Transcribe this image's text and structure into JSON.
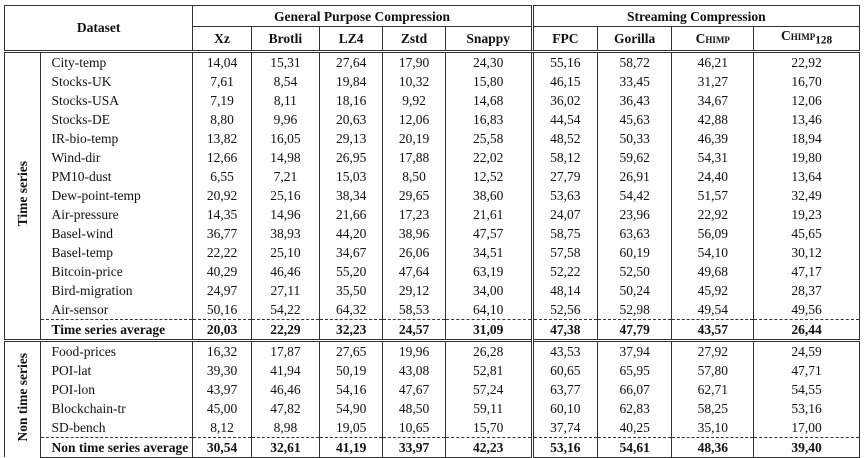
{
  "table": {
    "header": {
      "dataset": "Dataset",
      "groups": [
        "General Purpose Compression",
        "Streaming Compression"
      ],
      "columns": [
        "Xz",
        "Brotli",
        "LZ4",
        "Zstd",
        "Snappy",
        "FPC",
        "Gorilla",
        "Chimp",
        {
          "text": "Chimp",
          "subscript": "128"
        }
      ]
    },
    "sections": [
      {
        "label": "Time series",
        "rows": [
          [
            "City-temp",
            "14,04",
            "15,31",
            "27,64",
            "17,90",
            "24,30",
            "55,16",
            "58,72",
            "46,21",
            "22,92"
          ],
          [
            "Stocks-UK",
            "7,61",
            "8,54",
            "19,84",
            "10,32",
            "15,80",
            "46,15",
            "33,45",
            "31,27",
            "16,70"
          ],
          [
            "Stocks-USA",
            "7,19",
            "8,11",
            "18,16",
            "9,92",
            "14,68",
            "36,02",
            "36,43",
            "34,67",
            "12,06"
          ],
          [
            "Stocks-DE",
            "8,80",
            "9,96",
            "20,63",
            "12,06",
            "16,83",
            "44,54",
            "45,63",
            "42,88",
            "13,46"
          ],
          [
            "IR-bio-temp",
            "13,82",
            "16,05",
            "29,13",
            "20,19",
            "25,58",
            "48,52",
            "50,33",
            "46,39",
            "18,94"
          ],
          [
            "Wind-dir",
            "12,66",
            "14,98",
            "26,95",
            "17,88",
            "22,02",
            "58,12",
            "59,62",
            "54,31",
            "19,80"
          ],
          [
            "PM10-dust",
            "6,55",
            "7,21",
            "15,03",
            "8,50",
            "12,52",
            "27,79",
            "26,91",
            "24,40",
            "13,64"
          ],
          [
            "Dew-point-temp",
            "20,92",
            "25,16",
            "38,34",
            "29,65",
            "38,60",
            "53,63",
            "54,42",
            "51,57",
            "32,49"
          ],
          [
            "Air-pressure",
            "14,35",
            "14,96",
            "21,66",
            "17,23",
            "21,61",
            "24,07",
            "23,96",
            "22,92",
            "19,23"
          ],
          [
            "Basel-wind",
            "36,77",
            "38,93",
            "44,20",
            "38,96",
            "47,57",
            "58,75",
            "63,63",
            "56,09",
            "45,65"
          ],
          [
            "Basel-temp",
            "22,22",
            "25,10",
            "34,67",
            "26,06",
            "34,51",
            "57,58",
            "60,19",
            "54,10",
            "30,12"
          ],
          [
            "Bitcoin-price",
            "40,29",
            "46,46",
            "55,20",
            "47,64",
            "63,19",
            "52,22",
            "52,50",
            "49,68",
            "47,17"
          ],
          [
            "Bird-migration",
            "24,97",
            "27,11",
            "35,50",
            "29,12",
            "34,00",
            "48,14",
            "50,24",
            "45,92",
            "28,37"
          ],
          [
            "Air-sensor",
            "50,16",
            "54,22",
            "64,32",
            "58,53",
            "64,10",
            "52,56",
            "52,98",
            "49,54",
            "49,56"
          ]
        ],
        "average": [
          "Time series average",
          "20,03",
          "22,29",
          "32,23",
          "24,57",
          "31,09",
          "47,38",
          "47,79",
          "43,57",
          "26,44"
        ]
      },
      {
        "label": "Non time series",
        "rows": [
          [
            "Food-prices",
            "16,32",
            "17,87",
            "27,65",
            "19,96",
            "26,28",
            "43,53",
            "37,94",
            "27,92",
            "24,59"
          ],
          [
            "POI-lat",
            "39,30",
            "41,94",
            "50,19",
            "43,08",
            "52,81",
            "60,65",
            "65,95",
            "57,80",
            "47,71"
          ],
          [
            "POI-lon",
            "43,97",
            "46,46",
            "54,16",
            "47,67",
            "57,24",
            "63,77",
            "66,07",
            "62,71",
            "54,55"
          ],
          [
            "Blockchain-tr",
            "45,00",
            "47,82",
            "54,90",
            "48,50",
            "59,11",
            "60,10",
            "62,83",
            "58,25",
            "53,16"
          ],
          [
            "SD-bench",
            "8,12",
            "8,98",
            "19,05",
            "10,65",
            "15,70",
            "37,74",
            "40,25",
            "35,10",
            "17,00"
          ]
        ],
        "average": [
          "Non time series average",
          "30,54",
          "32,61",
          "41,19",
          "33,97",
          "42,23",
          "53,16",
          "54,61",
          "48,36",
          "39,40"
        ]
      }
    ]
  }
}
